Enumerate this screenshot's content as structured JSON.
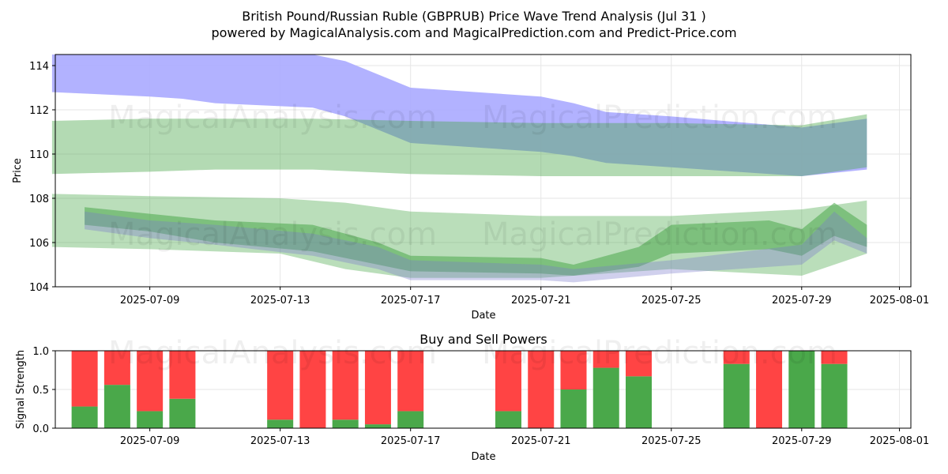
{
  "header": {
    "title_line1": "British Pound/Russian Ruble (GBPRUB) Price Wave Trend Analysis (Jul 31 )",
    "title_line2": "powered by MagicalAnalysis.com and MagicalPrediction.com and Predict-Price.com"
  },
  "watermarks": [
    "MagicalAnalysis.com",
    "MagicalPrediction.com"
  ],
  "colors": {
    "blue_band": "#aaaaff",
    "green_band": "#4aa84a",
    "buy": "#4aa84a",
    "sell": "#ff4444",
    "grid": "#e6e6e6"
  },
  "chart_data": [
    {
      "type": "area",
      "title": "",
      "xlabel": "Date",
      "ylabel": "Price",
      "xlim": [
        "2025-07-06",
        "2025-08-01"
      ],
      "ylim": [
        104,
        114.5
      ],
      "x_ticks": [
        "2025-07-09",
        "2025-07-13",
        "2025-07-17",
        "2025-07-21",
        "2025-07-25",
        "2025-07-29",
        "2025-08-01"
      ],
      "y_ticks": [
        104,
        106,
        108,
        110,
        112,
        114
      ],
      "grid": true,
      "series": [
        {
          "name": "upper-blue-band",
          "color": "#aaaaff",
          "x": [
            "2025-07-06",
            "2025-07-09",
            "2025-07-10",
            "2025-07-11",
            "2025-07-14",
            "2025-07-15",
            "2025-07-17",
            "2025-07-21",
            "2025-07-22",
            "2025-07-23",
            "2025-07-25",
            "2025-07-29",
            "2025-07-31"
          ],
          "upper": [
            114.5,
            114.5,
            114.5,
            114.5,
            114.5,
            114.2,
            113.0,
            112.6,
            112.3,
            111.9,
            111.7,
            111.2,
            111.6
          ],
          "lower": [
            112.8,
            112.6,
            112.5,
            112.3,
            112.1,
            111.7,
            110.5,
            110.1,
            109.9,
            109.6,
            109.4,
            109.0,
            109.3
          ]
        },
        {
          "name": "upper-green-band",
          "color": "#4aa84a",
          "x": [
            "2025-07-06",
            "2025-07-09",
            "2025-07-11",
            "2025-07-14",
            "2025-07-17",
            "2025-07-21",
            "2025-07-25",
            "2025-07-29",
            "2025-07-31"
          ],
          "upper": [
            111.5,
            111.6,
            111.6,
            111.6,
            111.5,
            111.4,
            111.4,
            111.3,
            111.8
          ],
          "lower": [
            109.1,
            109.2,
            109.3,
            109.3,
            109.1,
            109.0,
            109.0,
            109.0,
            109.4
          ]
        },
        {
          "name": "lower-green-band-wide",
          "color": "#4aa84a",
          "x": [
            "2025-07-06",
            "2025-07-09",
            "2025-07-13",
            "2025-07-15",
            "2025-07-17",
            "2025-07-21",
            "2025-07-25",
            "2025-07-29",
            "2025-07-31"
          ],
          "upper": [
            108.2,
            108.1,
            108.0,
            107.8,
            107.4,
            107.2,
            107.2,
            107.5,
            107.9
          ],
          "lower": [
            105.8,
            105.7,
            105.5,
            104.8,
            104.4,
            104.4,
            104.8,
            104.5,
            105.5
          ]
        },
        {
          "name": "lower-wave-cluster",
          "color": "#4aa84a",
          "x": [
            "2025-07-07",
            "2025-07-09",
            "2025-07-11",
            "2025-07-14",
            "2025-07-16",
            "2025-07-17",
            "2025-07-21",
            "2025-07-22",
            "2025-07-24",
            "2025-07-25",
            "2025-07-28",
            "2025-07-29",
            "2025-07-30",
            "2025-07-31"
          ],
          "upper": [
            107.6,
            107.3,
            107.0,
            106.8,
            106.0,
            105.4,
            105.3,
            105.0,
            105.8,
            106.8,
            107.0,
            106.6,
            107.8,
            106.8
          ],
          "lower": [
            106.8,
            106.5,
            106.0,
            105.6,
            105.0,
            104.7,
            104.6,
            104.5,
            104.9,
            105.5,
            105.7,
            105.4,
            106.3,
            105.8
          ]
        },
        {
          "name": "lower-blue-wave",
          "color": "#7777cc",
          "x": [
            "2025-07-07",
            "2025-07-09",
            "2025-07-11",
            "2025-07-14",
            "2025-07-16",
            "2025-07-17",
            "2025-07-21",
            "2025-07-22",
            "2025-07-25",
            "2025-07-29",
            "2025-07-30",
            "2025-07-31"
          ],
          "upper": [
            107.4,
            107.0,
            106.8,
            106.4,
            105.8,
            105.2,
            105.0,
            104.8,
            105.2,
            105.9,
            107.4,
            106.2
          ],
          "lower": [
            106.6,
            106.2,
            105.9,
            105.4,
            104.8,
            104.3,
            104.3,
            104.2,
            104.6,
            105.0,
            106.1,
            105.5
          ]
        }
      ]
    },
    {
      "type": "bar",
      "title": "Buy and Sell Powers",
      "xlabel": "Date",
      "ylabel": "Signal Strength",
      "xlim": [
        "2025-07-06",
        "2025-08-01"
      ],
      "ylim": [
        0,
        1.0
      ],
      "x_ticks": [
        "2025-07-09",
        "2025-07-13",
        "2025-07-17",
        "2025-07-21",
        "2025-07-25",
        "2025-07-29",
        "2025-08-01"
      ],
      "y_ticks": [
        "0.0",
        "0.5",
        "1.0"
      ],
      "categories": [
        "2025-07-07",
        "2025-07-08",
        "2025-07-09",
        "2025-07-10",
        "2025-07-13",
        "2025-07-14",
        "2025-07-15",
        "2025-07-16",
        "2025-07-17",
        "2025-07-20",
        "2025-07-21",
        "2025-07-22",
        "2025-07-23",
        "2025-07-24",
        "2025-07-27",
        "2025-07-28",
        "2025-07-29",
        "2025-07-30"
      ],
      "series": [
        {
          "name": "Buy",
          "color": "#4aa84a",
          "values": [
            0.28,
            0.56,
            0.22,
            0.38,
            0.11,
            0.0,
            0.11,
            0.05,
            0.22,
            0.22,
            0.0,
            0.5,
            0.78,
            0.67,
            0.83,
            0.0,
            1.0,
            0.83
          ]
        },
        {
          "name": "Sell",
          "color": "#ff4444",
          "values": [
            0.72,
            0.44,
            0.78,
            0.62,
            0.89,
            1.0,
            0.89,
            0.95,
            0.78,
            0.78,
            1.0,
            0.5,
            0.22,
            0.33,
            0.17,
            1.0,
            0.0,
            0.17
          ]
        }
      ]
    }
  ]
}
